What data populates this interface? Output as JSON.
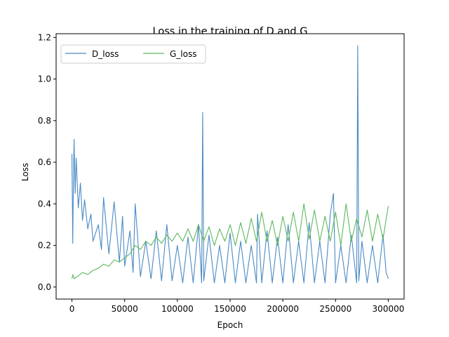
{
  "chart_data": {
    "type": "line",
    "title": "Loss in the training of D and G",
    "xlabel": "Epoch",
    "ylabel": "Loss",
    "xlim": [
      -15000,
      315000
    ],
    "ylim": [
      -0.058,
      1.218
    ],
    "xticks": [
      0,
      50000,
      100000,
      150000,
      200000,
      250000,
      300000
    ],
    "yticks": [
      0.0,
      0.2,
      0.4,
      0.6,
      0.8,
      1.0,
      1.2
    ],
    "grid": false,
    "legend": {
      "placement": "top-left",
      "columns": 2
    },
    "series": [
      {
        "name": "D_loss",
        "color": "#4a8ac4",
        "points": [
          [
            0,
            0.64
          ],
          [
            800,
            0.21
          ],
          [
            1500,
            0.55
          ],
          [
            2000,
            0.71
          ],
          [
            3000,
            0.45
          ],
          [
            4000,
            0.62
          ],
          [
            6000,
            0.38
          ],
          [
            8000,
            0.5
          ],
          [
            10000,
            0.32
          ],
          [
            12000,
            0.42
          ],
          [
            15000,
            0.28
          ],
          [
            18000,
            0.35
          ],
          [
            20000,
            0.22
          ],
          [
            25000,
            0.3
          ],
          [
            28000,
            0.18
          ],
          [
            30000,
            0.43
          ],
          [
            35000,
            0.16
          ],
          [
            40000,
            0.41
          ],
          [
            45000,
            0.12
          ],
          [
            48000,
            0.34
          ],
          [
            50000,
            0.1
          ],
          [
            55000,
            0.27
          ],
          [
            58000,
            0.07
          ],
          [
            60000,
            0.4
          ],
          [
            65000,
            0.05
          ],
          [
            70000,
            0.22
          ],
          [
            75000,
            0.04
          ],
          [
            80000,
            0.27
          ],
          [
            85000,
            0.03
          ],
          [
            90000,
            0.3
          ],
          [
            95000,
            0.03
          ],
          [
            100000,
            0.2
          ],
          [
            105000,
            0.02
          ],
          [
            110000,
            0.24
          ],
          [
            115000,
            0.02
          ],
          [
            120000,
            0.3
          ],
          [
            123000,
            0.02
          ],
          [
            124000,
            0.84
          ],
          [
            125000,
            0.03
          ],
          [
            130000,
            0.25
          ],
          [
            135000,
            0.02
          ],
          [
            140000,
            0.2
          ],
          [
            145000,
            0.02
          ],
          [
            150000,
            0.26
          ],
          [
            155000,
            0.02
          ],
          [
            160000,
            0.22
          ],
          [
            165000,
            0.02
          ],
          [
            170000,
            0.2
          ],
          [
            175000,
            0.02
          ],
          [
            176000,
            0.35
          ],
          [
            180000,
            0.02
          ],
          [
            185000,
            0.27
          ],
          [
            190000,
            0.02
          ],
          [
            195000,
            0.24
          ],
          [
            200000,
            0.02
          ],
          [
            205000,
            0.3
          ],
          [
            210000,
            0.02
          ],
          [
            215000,
            0.22
          ],
          [
            220000,
            0.02
          ],
          [
            225000,
            0.31
          ],
          [
            230000,
            0.02
          ],
          [
            235000,
            0.22
          ],
          [
            240000,
            0.02
          ],
          [
            245000,
            0.35
          ],
          [
            248000,
            0.45
          ],
          [
            250000,
            0.02
          ],
          [
            255000,
            0.2
          ],
          [
            260000,
            0.02
          ],
          [
            265000,
            0.25
          ],
          [
            270000,
            0.02
          ],
          [
            271000,
            1.16
          ],
          [
            272000,
            0.03
          ],
          [
            275000,
            0.22
          ],
          [
            280000,
            0.02
          ],
          [
            285000,
            0.2
          ],
          [
            290000,
            0.02
          ],
          [
            295000,
            0.25
          ],
          [
            298000,
            0.07
          ],
          [
            300000,
            0.04
          ]
        ]
      },
      {
        "name": "G_loss",
        "color": "#5cb85c",
        "points": [
          [
            0,
            0.04
          ],
          [
            1000,
            0.06
          ],
          [
            2000,
            0.04
          ],
          [
            5000,
            0.05
          ],
          [
            10000,
            0.07
          ],
          [
            15000,
            0.06
          ],
          [
            20000,
            0.08
          ],
          [
            25000,
            0.09
          ],
          [
            30000,
            0.11
          ],
          [
            35000,
            0.1
          ],
          [
            40000,
            0.13
          ],
          [
            45000,
            0.12
          ],
          [
            50000,
            0.14
          ],
          [
            55000,
            0.16
          ],
          [
            60000,
            0.2
          ],
          [
            65000,
            0.18
          ],
          [
            70000,
            0.22
          ],
          [
            75000,
            0.2
          ],
          [
            80000,
            0.24
          ],
          [
            85000,
            0.21
          ],
          [
            90000,
            0.25
          ],
          [
            95000,
            0.22
          ],
          [
            100000,
            0.26
          ],
          [
            105000,
            0.22
          ],
          [
            110000,
            0.28
          ],
          [
            115000,
            0.22
          ],
          [
            120000,
            0.3
          ],
          [
            125000,
            0.22
          ],
          [
            130000,
            0.29
          ],
          [
            135000,
            0.2
          ],
          [
            140000,
            0.28
          ],
          [
            145000,
            0.22
          ],
          [
            150000,
            0.3
          ],
          [
            155000,
            0.2
          ],
          [
            160000,
            0.31
          ],
          [
            165000,
            0.21
          ],
          [
            170000,
            0.33
          ],
          [
            175000,
            0.22
          ],
          [
            180000,
            0.36
          ],
          [
            185000,
            0.22
          ],
          [
            190000,
            0.32
          ],
          [
            195000,
            0.2
          ],
          [
            200000,
            0.34
          ],
          [
            205000,
            0.22
          ],
          [
            210000,
            0.36
          ],
          [
            215000,
            0.22
          ],
          [
            220000,
            0.4
          ],
          [
            225000,
            0.23
          ],
          [
            230000,
            0.37
          ],
          [
            235000,
            0.22
          ],
          [
            240000,
            0.34
          ],
          [
            245000,
            0.22
          ],
          [
            250000,
            0.36
          ],
          [
            255000,
            0.2
          ],
          [
            260000,
            0.4
          ],
          [
            265000,
            0.22
          ],
          [
            270000,
            0.33
          ],
          [
            275000,
            0.24
          ],
          [
            280000,
            0.37
          ],
          [
            285000,
            0.22
          ],
          [
            290000,
            0.35
          ],
          [
            295000,
            0.23
          ],
          [
            300000,
            0.39
          ]
        ]
      }
    ]
  }
}
